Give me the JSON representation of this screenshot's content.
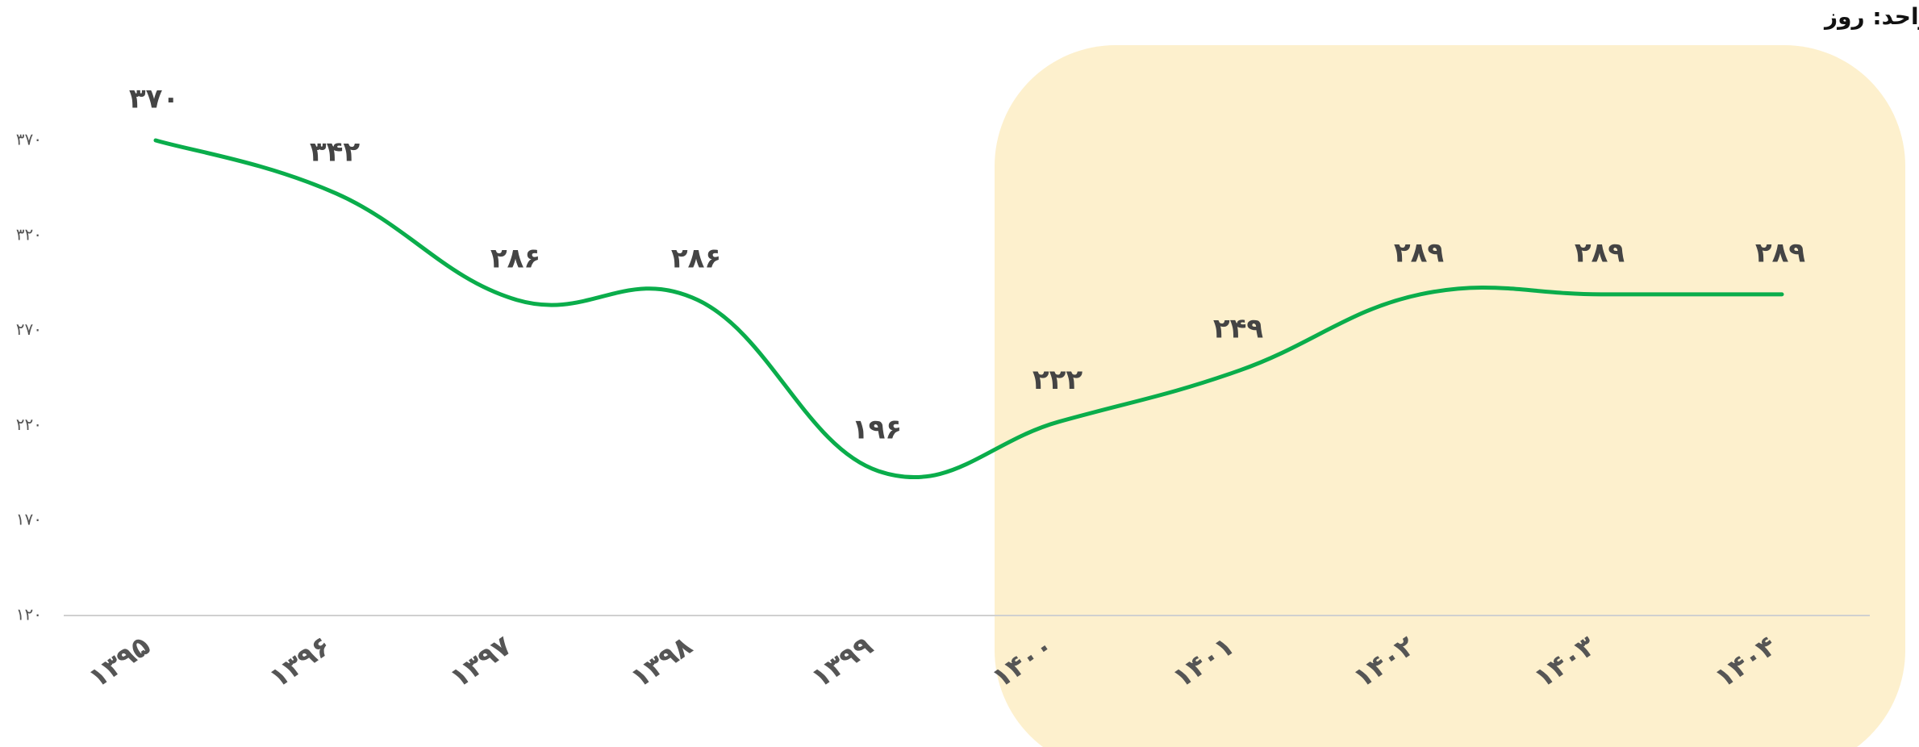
{
  "chart_data": {
    "type": "line",
    "title": "واحد: روز",
    "categories": [
      "۱۳۹۵",
      "۱۳۹۶",
      "۱۳۹۷",
      "۱۳۹۸",
      "۱۳۹۹",
      "۱۴۰۰",
      "۱۴۰۱",
      "۱۴۰۲",
      "۱۴۰۳",
      "۱۴۰۴"
    ],
    "values": [
      370,
      342,
      286,
      286,
      196,
      222,
      249,
      289,
      289,
      289
    ],
    "value_labels": [
      "۳۷۰",
      "۳۴۲",
      "۲۸۶",
      "۲۸۶",
      "۱۹۶",
      "۲۲۲",
      "۲۴۹",
      "۲۸۹",
      "۲۸۹",
      "۲۸۹"
    ],
    "color": "#0aad4b",
    "ylim": [
      120,
      370
    ],
    "yticks": [
      {
        "value": 120,
        "label": "۱۲۰"
      },
      {
        "value": 170,
        "label": "۱۷۰"
      },
      {
        "value": 220,
        "label": "۲۲۰"
      },
      {
        "value": 270,
        "label": "۲۷۰"
      },
      {
        "value": 320,
        "label": "۳۲۰"
      },
      {
        "value": 370,
        "label": "۳۷۰"
      }
    ],
    "grid": false
  }
}
